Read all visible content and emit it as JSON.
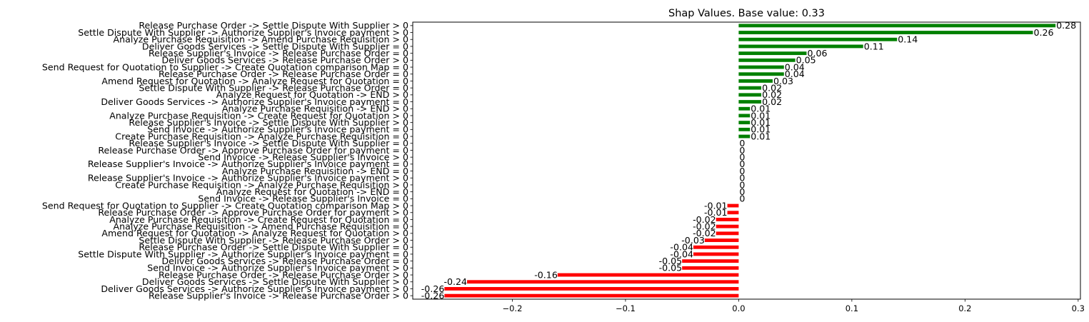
{
  "chart_data": {
    "type": "bar",
    "orientation": "horizontal",
    "title": "Shap Values. Base value: 0.33",
    "xlabel": "",
    "ylabel": "",
    "xlim": [
      -0.288,
      0.302
    ],
    "xticks": [
      -0.2,
      -0.1,
      0.0,
      0.1,
      0.2,
      0.3
    ],
    "xtick_labels": [
      "−0.2",
      "−0.1",
      "0.0",
      "0.1",
      "0.2",
      "0.3"
    ],
    "grid": false,
    "legend": "none",
    "colors": {
      "positive": "#008000",
      "negative": "#ff0000",
      "zero": "#008000"
    },
    "bars": [
      {
        "label": "Release Purchase Order -> Settle Dispute With Supplier > 0",
        "value": 0.28,
        "value_label": "0.28"
      },
      {
        "label": "Settle Dispute With Supplier -> Authorize Supplier's Invoice payment > 0",
        "value": 0.26,
        "value_label": "0.26"
      },
      {
        "label": "Analyze Purchase Requisition -> Amend Purchase Requisition > 0",
        "value": 0.14,
        "value_label": "0.14"
      },
      {
        "label": "Deliver Goods Services -> Settle Dispute With Supplier = 0",
        "value": 0.11,
        "value_label": "0.11"
      },
      {
        "label": "Release Supplier's Invoice -> Release Purchase Order = 0",
        "value": 0.06,
        "value_label": "0.06"
      },
      {
        "label": "Deliver Goods Services -> Release Purchase Order > 0",
        "value": 0.05,
        "value_label": "0.05"
      },
      {
        "label": "Send Request for Quotation to Supplier -> Create Quotation comparison Map = 0",
        "value": 0.04,
        "value_label": "0.04"
      },
      {
        "label": "Release Purchase Order -> Release Purchase Order = 0",
        "value": 0.04,
        "value_label": "0.04"
      },
      {
        "label": "Amend Request for Quotation -> Analyze Request for Quotation = 0",
        "value": 0.03,
        "value_label": "0.03"
      },
      {
        "label": "Settle Dispute With Supplier -> Release Purchase Order = 0",
        "value": 0.02,
        "value_label": "0.02"
      },
      {
        "label": "Analyze Request for Quotation -> END > 0",
        "value": 0.02,
        "value_label": "0.02"
      },
      {
        "label": "Deliver Goods Services -> Authorize Supplier's Invoice payment = 0",
        "value": 0.02,
        "value_label": "0.02"
      },
      {
        "label": "Analyze Purchase Requisition -> END > 0",
        "value": 0.01,
        "value_label": "0.01"
      },
      {
        "label": "Analyze Purchase Requisition -> Create Request for Quotation > 0",
        "value": 0.01,
        "value_label": "0.01"
      },
      {
        "label": "Release Supplier's Invoice -> Settle Dispute With Supplier > 0",
        "value": 0.01,
        "value_label": "0.01"
      },
      {
        "label": "Send Invoice -> Authorize Supplier's Invoice payment = 0",
        "value": 0.01,
        "value_label": "0.01"
      },
      {
        "label": "Create Purchase Requisition -> Analyze Purchase Requisition = 0",
        "value": 0.01,
        "value_label": "0.01"
      },
      {
        "label": "Release Supplier's Invoice -> Settle Dispute With Supplier = 0",
        "value": 0,
        "value_label": "0"
      },
      {
        "label": "Release Purchase Order -> Approve Purchase Order for payment = 0",
        "value": 0,
        "value_label": "0"
      },
      {
        "label": "Send Invoice -> Release Supplier's Invoice > 0",
        "value": 0,
        "value_label": "0"
      },
      {
        "label": "Release Supplier's Invoice -> Authorize Supplier's Invoice payment = 0",
        "value": 0,
        "value_label": "0"
      },
      {
        "label": "Analyze Purchase Requisition -> END = 0",
        "value": 0,
        "value_label": "0"
      },
      {
        "label": "Release Supplier's Invoice -> Authorize Supplier's Invoice payment > 0",
        "value": 0,
        "value_label": "0"
      },
      {
        "label": "Create Purchase Requisition -> Analyze Purchase Requisition > 0",
        "value": 0,
        "value_label": "0"
      },
      {
        "label": "Analyze Request for Quotation -> END = 0",
        "value": 0,
        "value_label": "0"
      },
      {
        "label": "Send Invoice -> Release Supplier's Invoice = 0",
        "value": 0,
        "value_label": "0"
      },
      {
        "label": "Send Request for Quotation to Supplier -> Create Quotation comparison Map > 0",
        "value": -0.01,
        "value_label": "-0.01"
      },
      {
        "label": "Release Purchase Order -> Approve Purchase Order for payment > 0",
        "value": -0.01,
        "value_label": "-0.01"
      },
      {
        "label": "Analyze Purchase Requisition -> Create Request for Quotation = 0",
        "value": -0.02,
        "value_label": "-0.02"
      },
      {
        "label": "Analyze Purchase Requisition -> Amend Purchase Requisition = 0",
        "value": -0.02,
        "value_label": "-0.02"
      },
      {
        "label": "Amend Request for Quotation -> Analyze Request for Quotation > 0",
        "value": -0.02,
        "value_label": "-0.02"
      },
      {
        "label": "Settle Dispute With Supplier -> Release Purchase Order > 0",
        "value": -0.03,
        "value_label": "-0.03"
      },
      {
        "label": "Release Purchase Order -> Settle Dispute With Supplier = 0",
        "value": -0.04,
        "value_label": "-0.04"
      },
      {
        "label": "Settle Dispute With Supplier -> Authorize Supplier's Invoice payment = 0",
        "value": -0.04,
        "value_label": "-0.04"
      },
      {
        "label": "Deliver Goods Services -> Release Purchase Order = 0",
        "value": -0.05,
        "value_label": "-0.05"
      },
      {
        "label": "Send Invoice -> Authorize Supplier's Invoice payment > 0",
        "value": -0.05,
        "value_label": "-0.05"
      },
      {
        "label": "Release Purchase Order -> Release Purchase Order > 0",
        "value": -0.16,
        "value_label": "-0.16"
      },
      {
        "label": "Deliver Goods Services -> Settle Dispute With Supplier > 0",
        "value": -0.24,
        "value_label": "-0.24"
      },
      {
        "label": "Deliver Goods Services -> Authorize Supplier's Invoice payment > 0",
        "value": -0.26,
        "value_label": "-0.26"
      },
      {
        "label": "Release Supplier's Invoice -> Release Purchase Order > 0",
        "value": -0.26,
        "value_label": "-0.26"
      }
    ]
  }
}
